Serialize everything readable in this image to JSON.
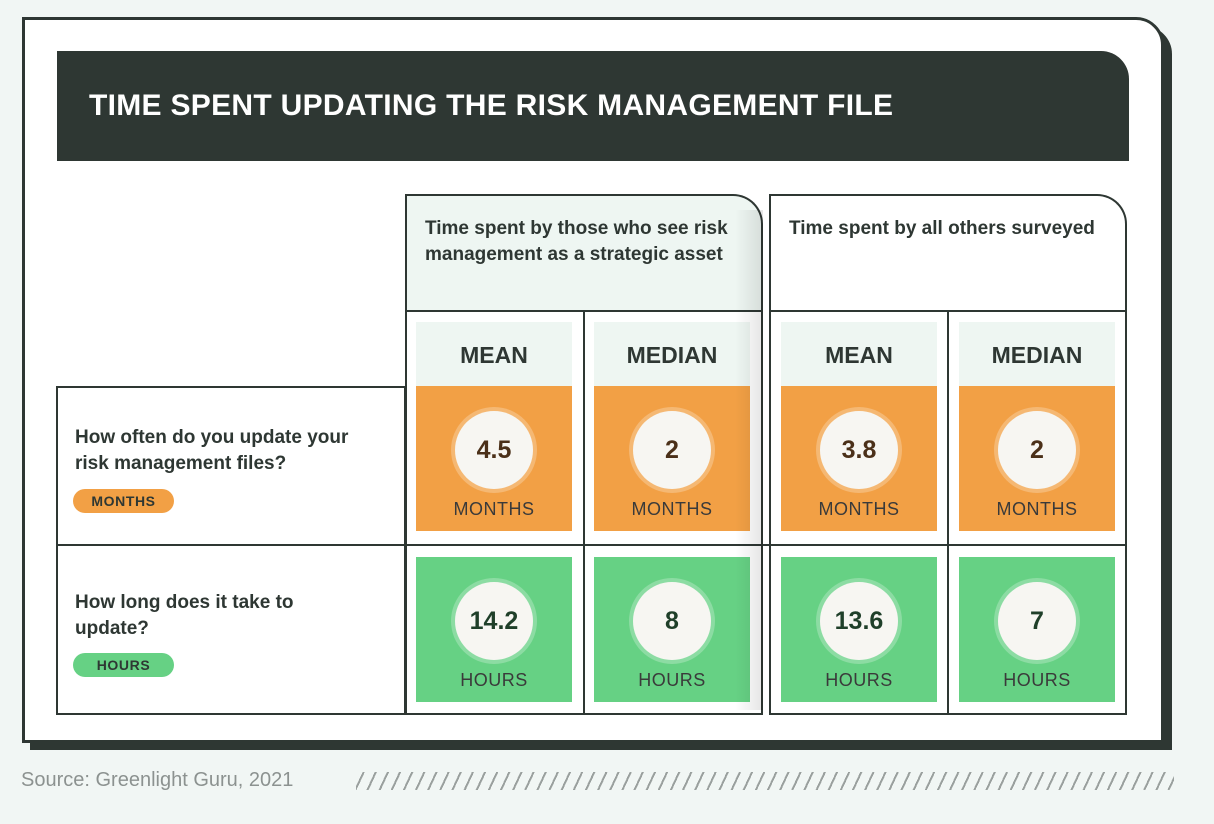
{
  "title": "TIME SPENT UPDATING THE RISK MANAGEMENT FILE",
  "groups": [
    {
      "label": "Time spent by those who see risk management as a strategic asset"
    },
    {
      "label": "Time spent by all others surveyed"
    }
  ],
  "columns": [
    "MEAN",
    "MEDIAN",
    "MEAN",
    "MEDIAN"
  ],
  "rows": [
    {
      "question": "How often do you update your risk management files?",
      "unit_pill": "MONTHS",
      "unit": "MONTHS",
      "values": [
        "4.5",
        "2",
        "3.8",
        "2"
      ]
    },
    {
      "question": "How long does it take to update?",
      "unit_pill": "HOURS",
      "unit": "HOURS",
      "values": [
        "14.2",
        "8",
        "13.6",
        "7"
      ]
    }
  ],
  "source": "Source: Greenlight Guru, 2021",
  "colors": {
    "dark": "#2e3733",
    "orange": "#f2a045",
    "green": "#66d184",
    "light": "#eef6f2"
  },
  "chart_data": {
    "type": "table",
    "title": "TIME SPENT UPDATING THE RISK MANAGEMENT FILE",
    "column_groups": [
      "Time spent by those who see risk management as a strategic asset",
      "Time spent by all others surveyed"
    ],
    "columns": [
      "MEAN",
      "MEDIAN",
      "MEAN",
      "MEDIAN"
    ],
    "rows": [
      {
        "label": "How often do you update your risk management files?",
        "unit": "MONTHS",
        "values": [
          4.5,
          2,
          3.8,
          2
        ]
      },
      {
        "label": "How long does it take to update?",
        "unit": "HOURS",
        "values": [
          14.2,
          8,
          13.6,
          7
        ]
      }
    ]
  }
}
